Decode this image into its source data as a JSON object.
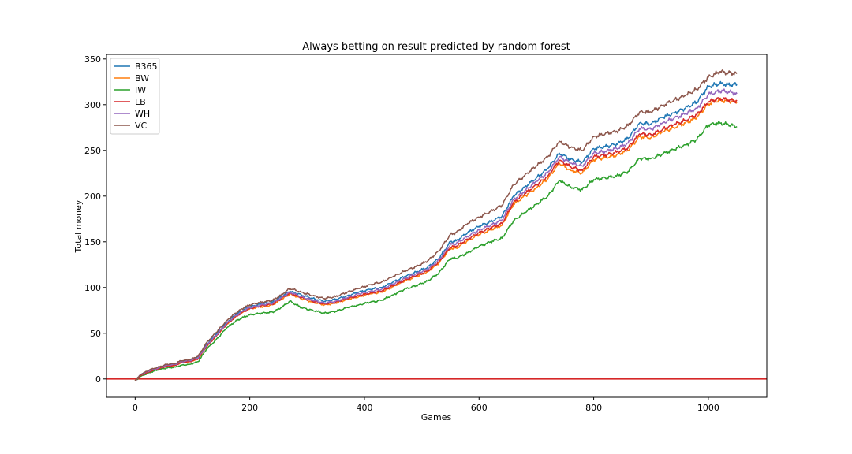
{
  "chart_data": {
    "type": "line",
    "title": "Always betting on result predicted by random forest",
    "xlabel": "Games",
    "ylabel": "Total money",
    "xlim": [
      -50,
      1102
    ],
    "ylim": [
      -20,
      355
    ],
    "xticks": [
      0,
      200,
      400,
      600,
      800,
      1000
    ],
    "yticks": [
      0,
      50,
      100,
      150,
      200,
      250,
      300,
      350
    ],
    "grid": false,
    "legend_position": "top-left",
    "reference_line": {
      "y": 0,
      "color": "#d62728"
    },
    "x": [
      0,
      10,
      25,
      40,
      55,
      70,
      80,
      95,
      110,
      125,
      140,
      160,
      175,
      190,
      200,
      220,
      240,
      255,
      270,
      290,
      310,
      330,
      350,
      370,
      390,
      410,
      430,
      450,
      470,
      490,
      510,
      530,
      550,
      560,
      580,
      600,
      620,
      640,
      660,
      680,
      700,
      720,
      740,
      760,
      780,
      800,
      820,
      840,
      860,
      880,
      900,
      920,
      940,
      960,
      980,
      1000,
      1020,
      1035,
      1050
    ],
    "series": [
      {
        "name": "B365",
        "color": "#1f77b4",
        "values": [
          -2,
          5,
          9,
          12,
          15,
          16,
          19,
          20,
          24,
          38,
          48,
          62,
          70,
          76,
          79,
          82,
          84,
          90,
          96,
          92,
          88,
          85,
          87,
          91,
          95,
          98,
          100,
          106,
          112,
          117,
          122,
          132,
          150,
          151,
          160,
          167,
          172,
          178,
          200,
          210,
          220,
          230,
          247,
          240,
          237,
          252,
          254,
          257,
          263,
          280,
          279,
          286,
          291,
          296,
          303,
          320,
          323,
          322,
          322
        ]
      },
      {
        "name": "BW",
        "color": "#ff7f0e",
        "values": [
          -2,
          4,
          8,
          11,
          14,
          15,
          18,
          19,
          22,
          36,
          46,
          60,
          68,
          74,
          77,
          79,
          81,
          87,
          93,
          88,
          84,
          81,
          83,
          87,
          90,
          93,
          95,
          101,
          107,
          112,
          117,
          127,
          143,
          143,
          151,
          158,
          163,
          168,
          191,
          200,
          209,
          219,
          236,
          228,
          225,
          240,
          242,
          245,
          250,
          265,
          264,
          270,
          275,
          280,
          286,
          301,
          305,
          304,
          303
        ]
      },
      {
        "name": "IW",
        "color": "#2ca02c",
        "values": [
          -2,
          3,
          7,
          10,
          12,
          13,
          15,
          16,
          19,
          33,
          42,
          56,
          63,
          68,
          70,
          72,
          73,
          78,
          85,
          78,
          75,
          72,
          74,
          78,
          81,
          84,
          86,
          92,
          98,
          102,
          107,
          116,
          132,
          132,
          138,
          145,
          150,
          154,
          173,
          182,
          191,
          200,
          217,
          210,
          207,
          218,
          220,
          222,
          227,
          241,
          241,
          246,
          251,
          256,
          262,
          278,
          280,
          278,
          276
        ]
      },
      {
        "name": "LB",
        "color": "#d62728",
        "values": [
          -2,
          4,
          8,
          11,
          14,
          15,
          18,
          19,
          22,
          36,
          46,
          60,
          68,
          74,
          77,
          80,
          82,
          88,
          94,
          89,
          85,
          82,
          84,
          88,
          91,
          94,
          96,
          102,
          108,
          113,
          118,
          128,
          144,
          145,
          153,
          160,
          165,
          170,
          193,
          203,
          212,
          222,
          239,
          232,
          228,
          243,
          245,
          248,
          253,
          268,
          267,
          273,
          278,
          283,
          289,
          303,
          307,
          305,
          304
        ]
      },
      {
        "name": "WH",
        "color": "#9467bd",
        "values": [
          -2,
          5,
          9,
          12,
          15,
          16,
          19,
          20,
          23,
          37,
          47,
          61,
          69,
          75,
          78,
          81,
          83,
          89,
          95,
          90,
          86,
          83,
          85,
          89,
          93,
          96,
          98,
          104,
          110,
          115,
          120,
          130,
          147,
          148,
          156,
          163,
          168,
          174,
          196,
          206,
          216,
          226,
          243,
          236,
          233,
          247,
          249,
          252,
          258,
          274,
          273,
          280,
          285,
          290,
          296,
          311,
          315,
          314,
          312
        ]
      },
      {
        "name": "VC",
        "color": "#8c564b",
        "values": [
          -2,
          5,
          10,
          13,
          16,
          17,
          20,
          21,
          25,
          40,
          50,
          64,
          72,
          78,
          81,
          84,
          86,
          92,
          99,
          95,
          91,
          88,
          90,
          95,
          99,
          103,
          106,
          112,
          118,
          123,
          129,
          140,
          158,
          160,
          170,
          177,
          183,
          190,
          212,
          223,
          233,
          243,
          260,
          253,
          250,
          265,
          268,
          271,
          277,
          292,
          292,
          299,
          305,
          310,
          317,
          330,
          336,
          335,
          334
        ]
      }
    ]
  }
}
